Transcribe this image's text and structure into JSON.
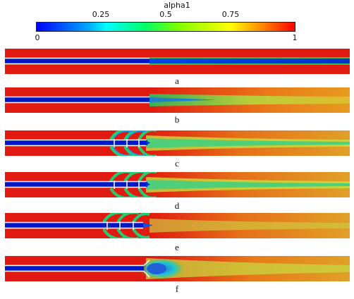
{
  "colorbar": {
    "title": "alpha1",
    "ticks": [
      "0.25",
      "0.5",
      "0.75"
    ],
    "min_label": "0",
    "max_label": "1",
    "colors": [
      "#0000ff",
      "#00a8ff",
      "#00ffff",
      "#00ff66",
      "#80ff00",
      "#ffff00",
      "#ff8000",
      "#ff0000"
    ]
  },
  "panels": [
    {
      "label": "a"
    },
    {
      "label": "b"
    },
    {
      "label": "c"
    },
    {
      "label": "d"
    },
    {
      "label": "e"
    },
    {
      "label": "f"
    }
  ]
}
